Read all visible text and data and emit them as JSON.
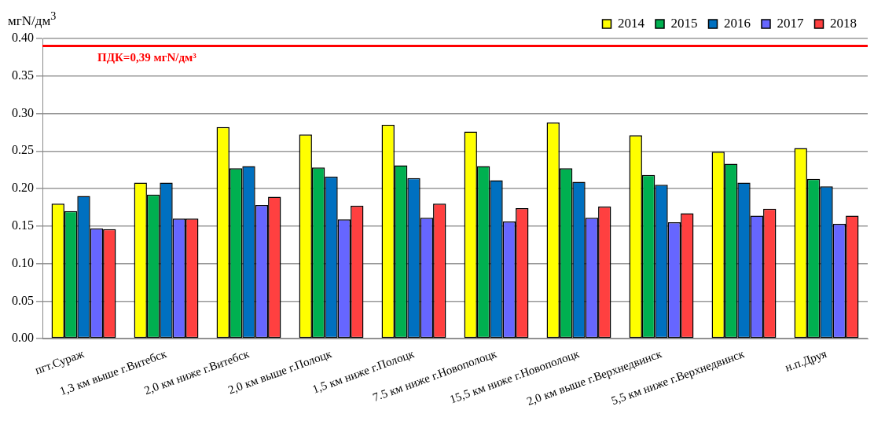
{
  "chart_data": {
    "type": "bar",
    "ylabel": "мгN/дм$^{3}$",
    "categories": [
      "пгт.Сураж",
      "1,3 км выше г.Витебск",
      "2,0 км ниже г.Витебск",
      "2,0 км выше г.Полоцк",
      "1,5 км ниже г.Полоцк",
      "7.5 км ниже г.Новополоцк",
      "15,5 км ниже г.Новополоцк",
      "2,0 км выше г.Верхнедвинск",
      "5,5 км ниже г.Верхнедвинск",
      "н.п.Друя"
    ],
    "series": [
      {
        "name": "2014",
        "color": "#ffff00",
        "values": [
          0.18,
          0.208,
          0.282,
          0.272,
          0.285,
          0.276,
          0.288,
          0.271,
          0.249,
          0.254
        ]
      },
      {
        "name": "2015",
        "color": "#00b050",
        "values": [
          0.17,
          0.192,
          0.227,
          0.228,
          0.231,
          0.23,
          0.227,
          0.218,
          0.233,
          0.213
        ]
      },
      {
        "name": "2016",
        "color": "#0070c0",
        "values": [
          0.19,
          0.208,
          0.23,
          0.216,
          0.214,
          0.211,
          0.209,
          0.205,
          0.208,
          0.203
        ]
      },
      {
        "name": "2017",
        "color": "#6666ff",
        "values": [
          0.147,
          0.16,
          0.178,
          0.159,
          0.161,
          0.156,
          0.161,
          0.155,
          0.164,
          0.153
        ]
      },
      {
        "name": "2018",
        "color": "#ff4040",
        "values": [
          0.146,
          0.16,
          0.189,
          0.177,
          0.18,
          0.174,
          0.176,
          0.167,
          0.173,
          0.164
        ]
      }
    ],
    "ylim": [
      0,
      0.4
    ],
    "yticks": [
      {
        "value": 0,
        "label": "0.00"
      },
      {
        "value": 0.05,
        "label": "0.05"
      },
      {
        "value": 0.1,
        "label": "0.10"
      },
      {
        "value": 0.15,
        "label": "0.15"
      },
      {
        "value": 0.2,
        "label": "0.20"
      },
      {
        "value": 0.25,
        "label": "0.25"
      },
      {
        "value": 0.3,
        "label": "0.30"
      },
      {
        "value": 0.35,
        "label": "0.35"
      },
      {
        "value": 0.4,
        "label": "0.40"
      }
    ],
    "ref_lines": [
      {
        "axis": "y",
        "value": 0.39,
        "label": "ПДК=0,39 мгN/дм³",
        "color": "#ff0000"
      }
    ],
    "grid": "y",
    "legend": "top right"
  }
}
